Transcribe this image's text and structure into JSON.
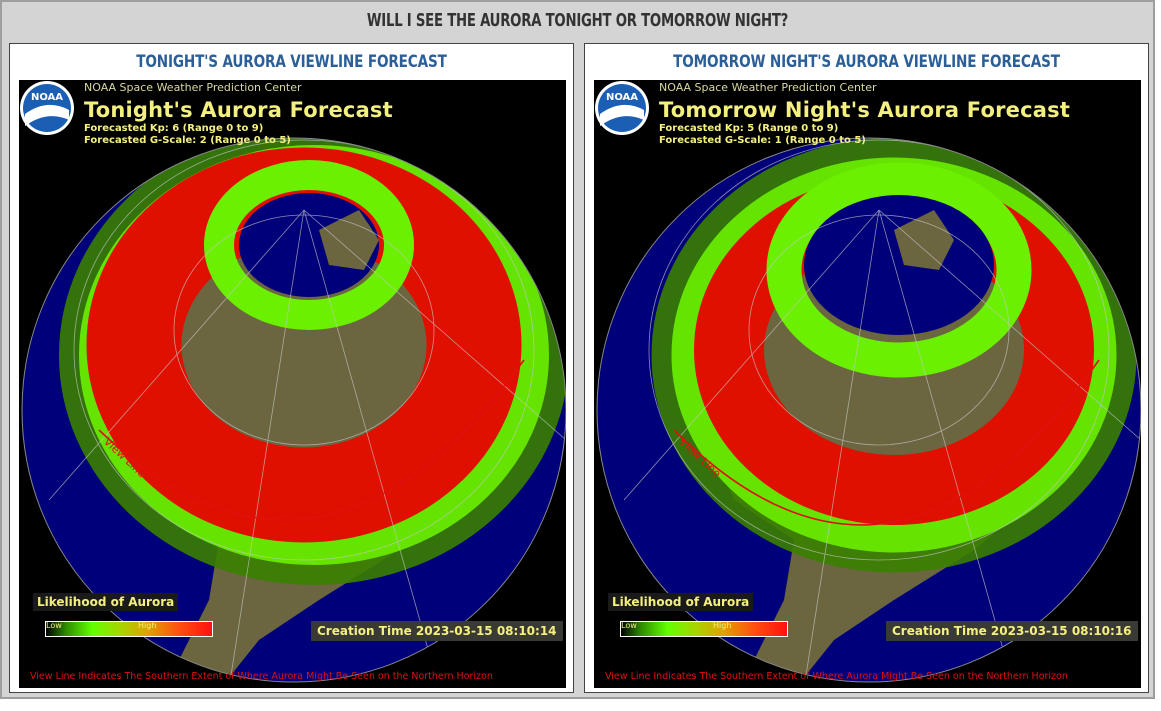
{
  "page": {
    "title": "WILL I SEE THE AURORA TONIGHT OR TOMORROW NIGHT?"
  },
  "legend": {
    "title": "Likelihood of Aurora",
    "low": "Low",
    "high": "High"
  },
  "panels": [
    {
      "heading": "TONIGHT'S AURORA VIEWLINE FORECAST",
      "org": "NOAA Space Weather Prediction Center",
      "title": "Tonight's Aurora Forecast",
      "kp": "Forecasted Kp: 6 (Range 0 to 9)",
      "gscale": "Forecasted G-Scale: 2 (Range 0 to 5)",
      "creation_time": "Creation Time 2023-03-15 08:10:14",
      "view_line_label": "View Line",
      "footnote": "View Line Indicates The Southern Extent of Where Aurora Might Be Seen on the Northern Horizon",
      "logo_text": "NOAA"
    },
    {
      "heading": "TOMORROW NIGHT'S AURORA VIEWLINE FORECAST",
      "org": "NOAA Space Weather Prediction Center",
      "title": "Tomorrow Night's Aurora Forecast",
      "kp": "Forecasted Kp: 5 (Range 0 to 9)",
      "gscale": "Forecasted G-Scale: 1 (Range 0 to 5)",
      "creation_time": "Creation Time 2023-03-15 08:10:16",
      "view_line_label": "View Line",
      "footnote": "View Line Indicates The Southern Extent of Where Aurora Might Be Seen on the Northern Horizon",
      "logo_text": "NOAA"
    }
  ],
  "colors": {
    "ocean": "#00007a",
    "land": "#6b6640",
    "aurora_high": "#e01000",
    "aurora_mid": "#6af000",
    "view_line": "#e01010",
    "heading": "#2c5f98",
    "overlay_text": "#f4f080"
  },
  "icons": [
    "noaa-logo-icon"
  ]
}
